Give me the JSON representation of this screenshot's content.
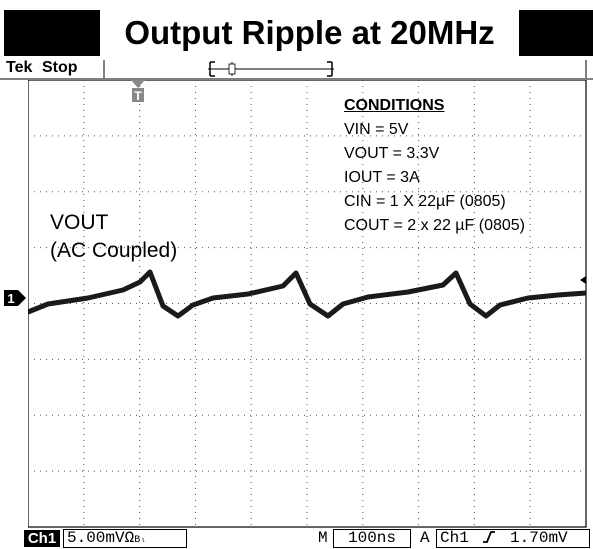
{
  "title": "Output Ripple at 20MHz",
  "scope": {
    "brand": "Tek",
    "state": "Stop",
    "trigger_marker": "T",
    "channel_marker": "1"
  },
  "conditions": {
    "heading": "CONDITIONS",
    "lines": [
      "VIN = 5V",
      "VOUT = 3.3V",
      "IOUT = 3A",
      "CIN = 1 X 22µF (0805)",
      "COUT = 2 x 22 µF (0805)"
    ]
  },
  "waveform_label": {
    "line1": "VOUT",
    "line2": "(AC Coupled)"
  },
  "status": {
    "channel": "Ch1",
    "scale": "5.00mVΩ",
    "bw_mark": "Bₗ",
    "timebase_prefix": "M",
    "timebase": "100ns",
    "trigger_mode": "A",
    "trigger_source": "Ch1",
    "trigger_slope_icon": "rising-edge-icon",
    "trigger_level": "1.70mV"
  },
  "colors": {
    "trace": "#1a1a1a",
    "grid": "#555555",
    "background": "#ffffff"
  }
}
